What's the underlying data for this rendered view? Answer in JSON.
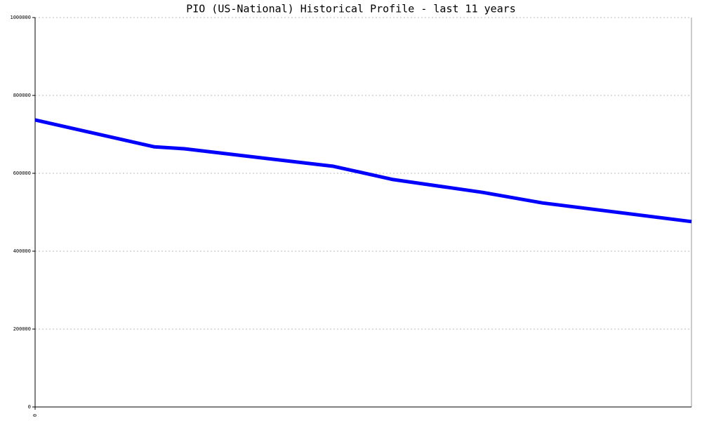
{
  "chart_data": {
    "type": "line",
    "title": "PIO (US-National) Historical Profile - last 11 years",
    "x": [
      0,
      2,
      2.5,
      5,
      6,
      6.5,
      7.5,
      8.5,
      11
    ],
    "series": [
      {
        "color": "#0000ff",
        "values": [
          737000,
          668000,
          663000,
          618000,
          584000,
          573000,
          551000,
          524000,
          476000
        ]
      }
    ],
    "xlim": [
      0,
      11
    ],
    "xticks": [
      0
    ],
    "ylim": [
      0,
      1000000
    ],
    "yticks": [
      0,
      200000,
      400000,
      600000,
      800000,
      1000000
    ],
    "grid": true
  }
}
